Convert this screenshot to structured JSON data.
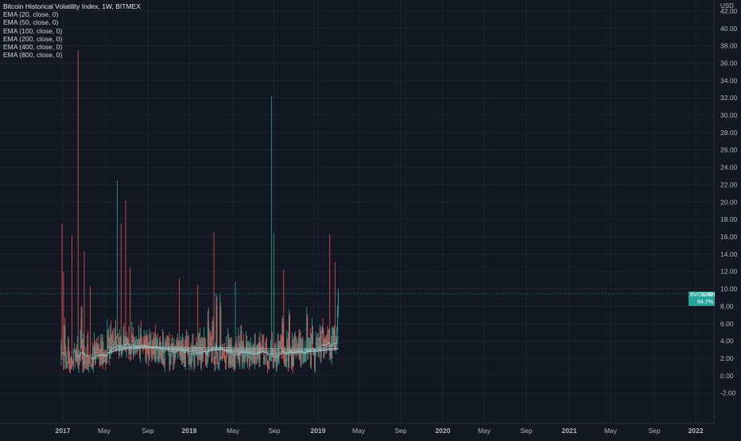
{
  "chart_data": {
    "type": "candlestick",
    "title": "Bitcoin Historical Volatility Index, 1W, BITMEX",
    "indicators": [
      "EMA (20, close, 0)",
      "EMA (50, close, 0)",
      "EMA (100, close, 0)",
      "EMA (200, close, 0)",
      "EMA (400, close, 0)",
      "EMA (800, close, 0)"
    ],
    "currency": "USD",
    "y_ticks": [
      "-2.00",
      "0.00",
      "2.00",
      "4.00",
      "6.00",
      "8.00",
      "10.00",
      "12.00",
      "14.00",
      "16.00",
      "18.00",
      "20.00",
      "22.00",
      "24.00",
      "26.00",
      "28.00",
      "30.00",
      "32.00",
      "34.00",
      "36.00",
      "38.00",
      "40.00",
      "42.00"
    ],
    "ylim": [
      -4.5,
      43
    ],
    "x_ticks": [
      "2017",
      "May",
      "Sep",
      "2018",
      "May",
      "Sep",
      "2019",
      "May",
      "Sep",
      "2020",
      "May",
      "Sep",
      "2021",
      "May",
      "Sep",
      "2022"
    ],
    "grid": true,
    "last_price": {
      "symbol": "BVOL24H",
      "value": "9.42",
      "change": "84.7%",
      "y": 9.42
    },
    "colors": {
      "background": "#131722",
      "grid": "#1e222d",
      "up": "#26a69a",
      "down": "#ef5350",
      "axis_text": "#b2b5be",
      "ema_line": "#9fb8b8"
    }
  }
}
